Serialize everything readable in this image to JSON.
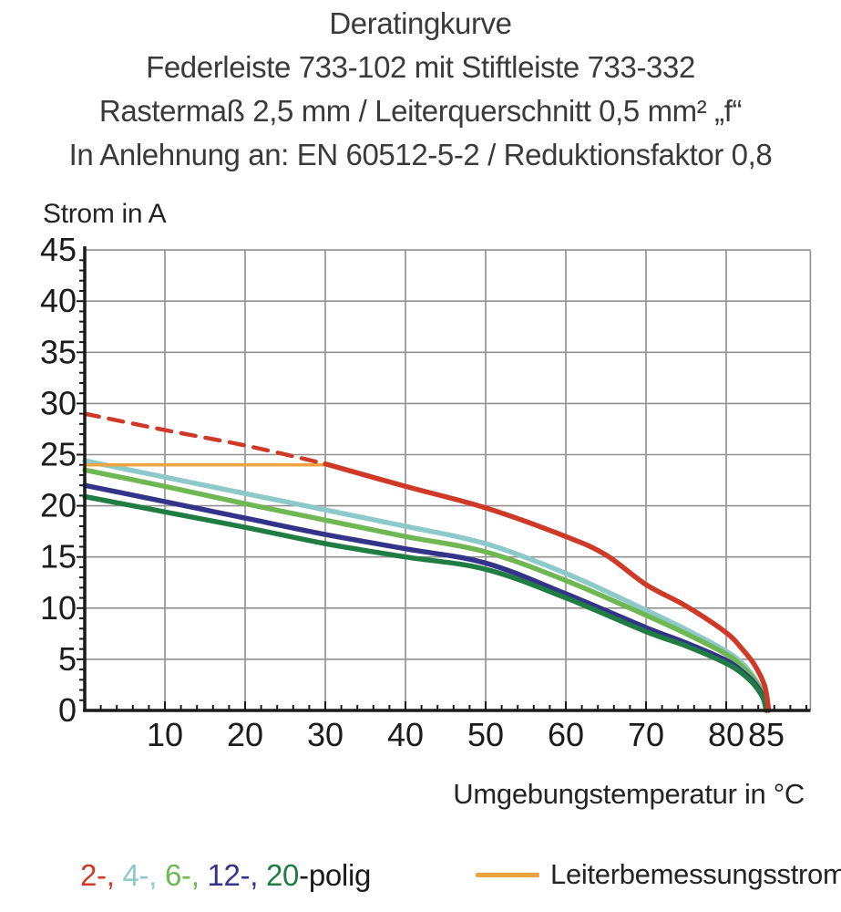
{
  "title": {
    "line1": "Deratingkurve",
    "line2": "Federleiste 733-102 mit Stiftleiste 733-332",
    "line3": "Rastermaß 2,5 mm / Leiterquerschnitt 0,5 mm² „f“",
    "line4": "In Anlehnung an: EN 60512-5-2 / Reduktionsfaktor 0,8"
  },
  "chart_data": {
    "type": "line",
    "title": "Deratingkurve",
    "ylabel": "Strom in A",
    "xlabel": "Umgebungstemperatur in °C",
    "xlim": [
      0,
      90.5
    ],
    "ylim": [
      0,
      45
    ],
    "x_major_ticks": [
      10,
      20,
      30,
      40,
      50,
      60,
      70,
      80,
      85
    ],
    "x_grid_ticks": [
      10,
      20,
      30,
      40,
      50,
      60,
      70,
      80
    ],
    "y_major_ticks": [
      0,
      5,
      10,
      15,
      20,
      25,
      30,
      35,
      40,
      45
    ],
    "y_grid_ticks": [
      5,
      10,
      15,
      20,
      25,
      30,
      35,
      40,
      45
    ],
    "x_minor_step": 2,
    "y_minor_step": 1,
    "grid": true,
    "grid_color": "#909090",
    "axis_color": "#1a1a1a",
    "series": [
      {
        "name": "4-polig",
        "color": "#8ec9c9",
        "style": "solid",
        "width": 5.5,
        "points": [
          [
            0,
            24.4
          ],
          [
            10,
            22.8
          ],
          [
            20,
            21.2
          ],
          [
            30,
            19.6
          ],
          [
            40,
            18.0
          ],
          [
            50,
            16.3
          ],
          [
            60,
            13.4
          ],
          [
            70,
            9.8
          ],
          [
            75,
            7.9
          ],
          [
            80,
            5.8
          ],
          [
            82,
            4.6
          ],
          [
            83.5,
            3.2
          ],
          [
            84.6,
            1.6
          ],
          [
            85,
            0
          ]
        ]
      },
      {
        "name": "6-polig",
        "color": "#6fb752",
        "style": "solid",
        "width": 5.5,
        "points": [
          [
            0,
            23.5
          ],
          [
            10,
            21.9
          ],
          [
            20,
            20.2
          ],
          [
            30,
            18.6
          ],
          [
            40,
            17.0
          ],
          [
            50,
            15.5
          ],
          [
            60,
            12.7
          ],
          [
            70,
            9.3
          ],
          [
            75,
            7.5
          ],
          [
            80,
            5.5
          ],
          [
            82,
            4.3
          ],
          [
            83.5,
            3.0
          ],
          [
            84.7,
            1.4
          ],
          [
            85.1,
            0
          ]
        ]
      },
      {
        "name": "12-polig",
        "color": "#34338a",
        "style": "solid",
        "width": 5.5,
        "points": [
          [
            0,
            22.0
          ],
          [
            10,
            20.4
          ],
          [
            20,
            18.8
          ],
          [
            30,
            17.2
          ],
          [
            40,
            15.8
          ],
          [
            50,
            14.4
          ],
          [
            60,
            11.4
          ],
          [
            70,
            8.1
          ],
          [
            75,
            6.6
          ],
          [
            80,
            4.9
          ],
          [
            82,
            3.8
          ],
          [
            83.5,
            2.7
          ],
          [
            84.6,
            1.3
          ],
          [
            85,
            0
          ]
        ]
      },
      {
        "name": "20-polig",
        "color": "#1f7c42",
        "style": "solid",
        "width": 5.5,
        "points": [
          [
            0,
            20.9
          ],
          [
            10,
            19.4
          ],
          [
            20,
            17.9
          ],
          [
            30,
            16.3
          ],
          [
            40,
            15.0
          ],
          [
            50,
            13.8
          ],
          [
            60,
            11.0
          ],
          [
            70,
            7.7
          ],
          [
            75,
            6.3
          ],
          [
            80,
            4.6
          ],
          [
            82,
            3.6
          ],
          [
            83.5,
            2.5
          ],
          [
            84.6,
            1.2
          ],
          [
            85,
            0
          ]
        ]
      },
      {
        "name": "Leiterbemessungsstrom",
        "color": "#efa33e",
        "style": "solid",
        "width": 3.5,
        "points": [
          [
            0,
            24
          ],
          [
            30.5,
            24
          ]
        ]
      },
      {
        "name": "2-polig",
        "color": "#cf3a28",
        "style": "solid",
        "width": 5.5,
        "points": [
          [
            30,
            24.1
          ],
          [
            40,
            21.9
          ],
          [
            50,
            19.8
          ],
          [
            60,
            17.0
          ],
          [
            65,
            15.2
          ],
          [
            70,
            12.3
          ],
          [
            75,
            10.2
          ],
          [
            80,
            7.6
          ],
          [
            82,
            6.0
          ],
          [
            83.5,
            4.5
          ],
          [
            84.8,
            2.4
          ],
          [
            85.3,
            0
          ]
        ]
      },
      {
        "name": "2-polig (ohne Reduktionsfaktor)",
        "color": "#cf3a28",
        "style": "dashed",
        "width": 4.5,
        "points": [
          [
            0,
            29.0
          ],
          [
            10,
            27.4
          ],
          [
            20,
            25.9
          ],
          [
            30,
            24.1
          ]
        ]
      }
    ]
  },
  "axis_labels": {
    "y": "Strom in A",
    "x": "Umgebungstemperatur in °C"
  },
  "legend": {
    "poles": {
      "segments": [
        {
          "text": "2-,",
          "color": "#cf3a28"
        },
        {
          "text": " 4-,",
          "color": "#8ec9c9"
        },
        {
          "text": " 6-,",
          "color": "#6fb752"
        },
        {
          "text": " 12-,",
          "color": "#34338a"
        },
        {
          "text": " 20",
          "color": "#1f7c42"
        },
        {
          "text": "-polig",
          "color": "#1a1a1a"
        }
      ]
    },
    "rated_current": {
      "label": "Leiterbemessungsstrom",
      "color": "#efa33e"
    }
  }
}
